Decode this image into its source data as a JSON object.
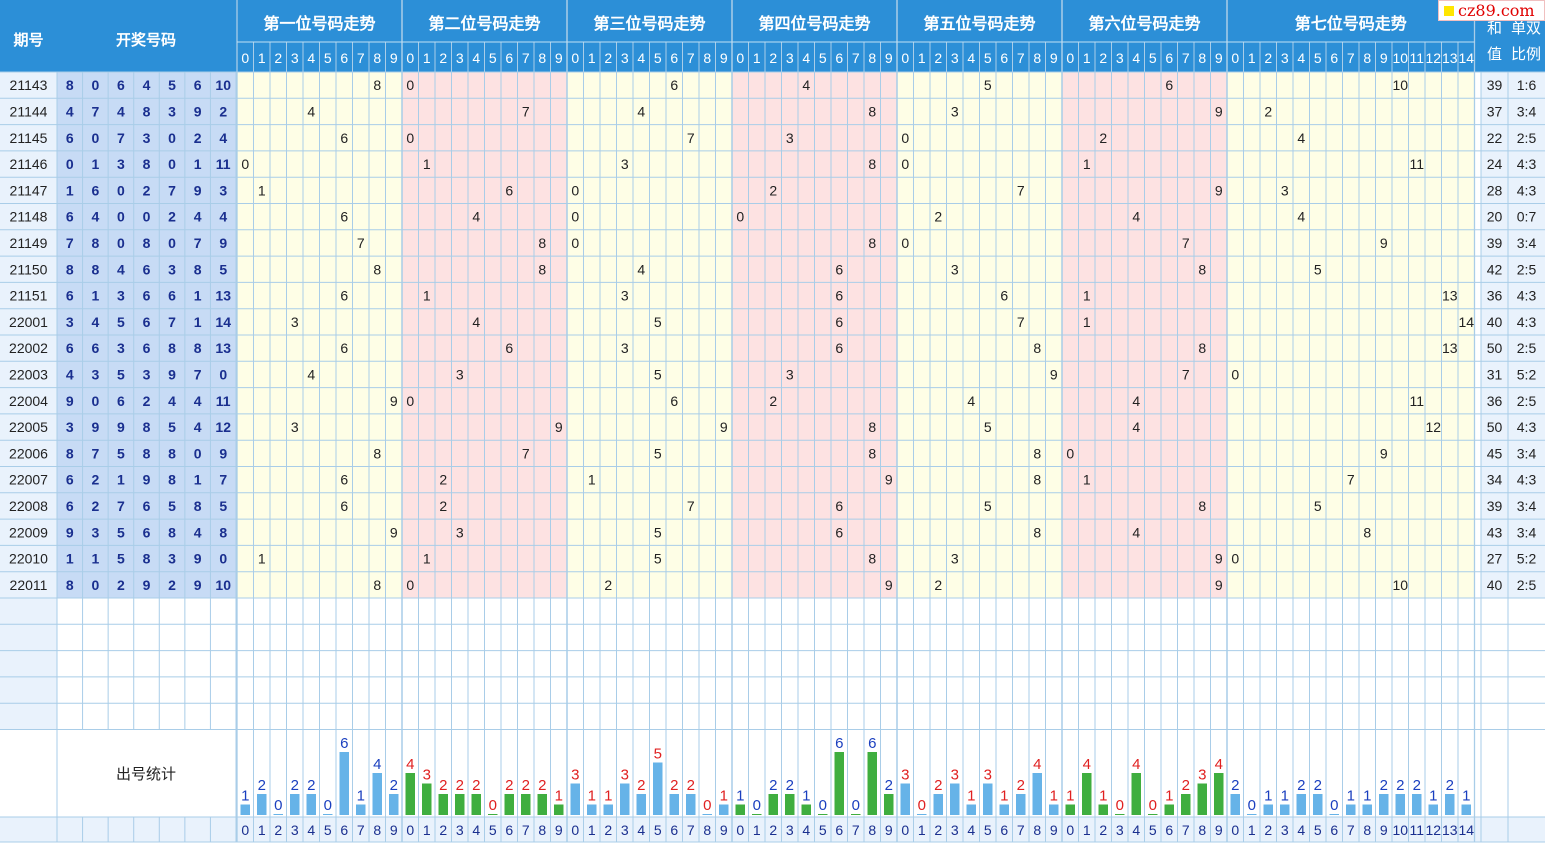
{
  "header": {
    "period_label": "期号",
    "draw_label": "开奖号码",
    "sum_label_line1": "和",
    "sum_label_line2": "值",
    "ratio_label_line1": "单双",
    "ratio_label_line2": "比例"
  },
  "watermark": "cz89.com",
  "stats_label": "出号统计",
  "colors": {
    "header_bg": "#2c8fd7",
    "header_text": "#ffffff",
    "period_bg": "#e9f2fc",
    "draw_bg": "#c7dbf5",
    "draw_text": "#1a2f8f",
    "band_yellow": "#fefee6",
    "band_pink": "#fde2e2",
    "grid": "#a9cde8",
    "bar_blue": "#66b3e8",
    "bar_green": "#3fae3f",
    "count_blue": "#1a3fbf",
    "count_red": "#e02020"
  },
  "chart_data": {
    "type": "table",
    "positions": [
      {
        "title": "第一位号码走势",
        "digits": [
          "0",
          "1",
          "2",
          "3",
          "4",
          "5",
          "6",
          "7",
          "8",
          "9"
        ],
        "band": "yellow"
      },
      {
        "title": "第二位号码走势",
        "digits": [
          "0",
          "1",
          "2",
          "3",
          "4",
          "5",
          "6",
          "7",
          "8",
          "9"
        ],
        "band": "pink"
      },
      {
        "title": "第三位号码走势",
        "digits": [
          "0",
          "1",
          "2",
          "3",
          "4",
          "5",
          "6",
          "7",
          "8",
          "9"
        ],
        "band": "yellow"
      },
      {
        "title": "第四位号码走势",
        "digits": [
          "0",
          "1",
          "2",
          "3",
          "4",
          "5",
          "6",
          "7",
          "8",
          "9"
        ],
        "band": "pink"
      },
      {
        "title": "第五位号码走势",
        "digits": [
          "0",
          "1",
          "2",
          "3",
          "4",
          "5",
          "6",
          "7",
          "8",
          "9"
        ],
        "band": "yellow"
      },
      {
        "title": "第六位号码走势",
        "digits": [
          "0",
          "1",
          "2",
          "3",
          "4",
          "5",
          "6",
          "7",
          "8",
          "9"
        ],
        "band": "pink"
      },
      {
        "title": "第七位号码走势",
        "digits": [
          "0",
          "1",
          "2",
          "3",
          "4",
          "5",
          "6",
          "7",
          "8",
          "9",
          "10",
          "11",
          "12",
          "13",
          "14"
        ],
        "band": "yellow"
      }
    ],
    "draws": [
      {
        "period": "21143",
        "numbers": [
          8,
          0,
          6,
          4,
          5,
          6,
          10
        ],
        "sum": "39",
        "ratio": "1:6"
      },
      {
        "period": "21144",
        "numbers": [
          4,
          7,
          4,
          8,
          3,
          9,
          2
        ],
        "sum": "37",
        "ratio": "3:4"
      },
      {
        "period": "21145",
        "numbers": [
          6,
          0,
          7,
          3,
          0,
          2,
          4
        ],
        "sum": "22",
        "ratio": "2:5"
      },
      {
        "period": "21146",
        "numbers": [
          0,
          1,
          3,
          8,
          0,
          1,
          11
        ],
        "sum": "24",
        "ratio": "4:3"
      },
      {
        "period": "21147",
        "numbers": [
          1,
          6,
          0,
          2,
          7,
          9,
          3
        ],
        "sum": "28",
        "ratio": "4:3"
      },
      {
        "period": "21148",
        "numbers": [
          6,
          4,
          0,
          0,
          2,
          4,
          4
        ],
        "sum": "20",
        "ratio": "0:7"
      },
      {
        "period": "21149",
        "numbers": [
          7,
          8,
          0,
          8,
          0,
          7,
          9
        ],
        "sum": "39",
        "ratio": "3:4"
      },
      {
        "period": "21150",
        "numbers": [
          8,
          8,
          4,
          6,
          3,
          8,
          5
        ],
        "sum": "42",
        "ratio": "2:5"
      },
      {
        "period": "21151",
        "numbers": [
          6,
          1,
          3,
          6,
          6,
          1,
          13
        ],
        "sum": "36",
        "ratio": "4:3"
      },
      {
        "period": "22001",
        "numbers": [
          3,
          4,
          5,
          6,
          7,
          1,
          14
        ],
        "sum": "40",
        "ratio": "4:3"
      },
      {
        "period": "22002",
        "numbers": [
          6,
          6,
          3,
          6,
          8,
          8,
          13
        ],
        "sum": "50",
        "ratio": "2:5"
      },
      {
        "period": "22003",
        "numbers": [
          4,
          3,
          5,
          3,
          9,
          7,
          0
        ],
        "sum": "31",
        "ratio": "5:2"
      },
      {
        "period": "22004",
        "numbers": [
          9,
          0,
          6,
          2,
          4,
          4,
          11
        ],
        "sum": "36",
        "ratio": "2:5"
      },
      {
        "period": "22005",
        "numbers": [
          3,
          9,
          9,
          8,
          5,
          4,
          12
        ],
        "sum": "50",
        "ratio": "4:3"
      },
      {
        "period": "22006",
        "numbers": [
          8,
          7,
          5,
          8,
          8,
          0,
          9
        ],
        "sum": "45",
        "ratio": "3:4"
      },
      {
        "period": "22007",
        "numbers": [
          6,
          2,
          1,
          9,
          8,
          1,
          7
        ],
        "sum": "34",
        "ratio": "4:3"
      },
      {
        "period": "22008",
        "numbers": [
          6,
          2,
          7,
          6,
          5,
          8,
          5
        ],
        "sum": "39",
        "ratio": "3:4"
      },
      {
        "period": "22009",
        "numbers": [
          9,
          3,
          5,
          6,
          8,
          4,
          8
        ],
        "sum": "43",
        "ratio": "3:4"
      },
      {
        "period": "22010",
        "numbers": [
          1,
          1,
          5,
          8,
          3,
          9,
          0
        ],
        "sum": "27",
        "ratio": "5:2"
      },
      {
        "period": "22011",
        "numbers": [
          8,
          0,
          2,
          9,
          2,
          9,
          10
        ],
        "sum": "40",
        "ratio": "2:5"
      }
    ],
    "counts": [
      [
        1,
        2,
        0,
        2,
        2,
        0,
        6,
        1,
        4,
        2
      ],
      [
        4,
        3,
        2,
        2,
        2,
        0,
        2,
        2,
        2,
        1
      ],
      [
        3,
        1,
        1,
        3,
        2,
        5,
        2,
        2,
        0,
        1
      ],
      [
        1,
        0,
        2,
        2,
        1,
        0,
        6,
        0,
        6,
        2
      ],
      [
        3,
        0,
        2,
        3,
        1,
        3,
        1,
        2,
        4,
        1
      ],
      [
        1,
        4,
        1,
        0,
        4,
        0,
        1,
        2,
        3,
        4
      ],
      [
        2,
        0,
        1,
        1,
        2,
        2,
        0,
        1,
        1,
        2,
        2,
        2,
        1,
        2,
        1
      ]
    ],
    "count_colors": [
      "blue",
      "red",
      "red",
      "blue",
      "red",
      "red",
      "blue"
    ],
    "bar_colors": [
      "blue",
      "green",
      "blue",
      "green",
      "blue",
      "green",
      "blue"
    ]
  }
}
